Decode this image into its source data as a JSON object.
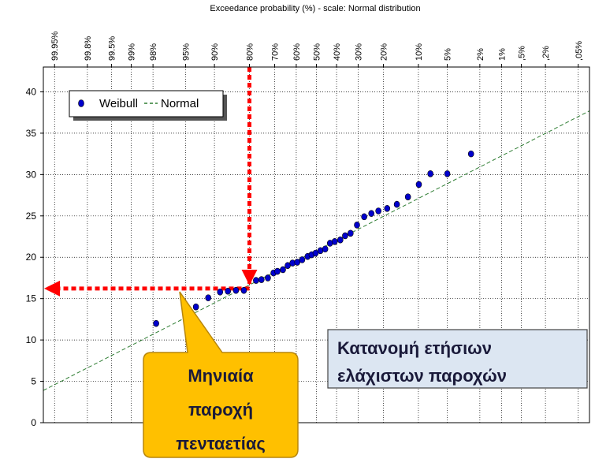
{
  "chart_data": {
    "type": "scatter",
    "title": "Exceedance probability  (%) - scale: Normal distribution",
    "xscale": "normal",
    "xlim": [
      99.97,
      0.03
    ],
    "xticks": [
      {
        "value": 99.95,
        "label": "99.95%"
      },
      {
        "value": 99.8,
        "label": "99.8%"
      },
      {
        "value": 99.5,
        "label": "99.5%"
      },
      {
        "value": 99,
        "label": "99%"
      },
      {
        "value": 98,
        "label": "98%"
      },
      {
        "value": 95,
        "label": "95%"
      },
      {
        "value": 90,
        "label": "90%"
      },
      {
        "value": 80,
        "label": "80%"
      },
      {
        "value": 70,
        "label": "70%"
      },
      {
        "value": 60,
        "label": "60%"
      },
      {
        "value": 50,
        "label": "50%"
      },
      {
        "value": 40,
        "label": "40%"
      },
      {
        "value": 30,
        "label": "30%"
      },
      {
        "value": 20,
        "label": "20%"
      },
      {
        "value": 10,
        "label": "10%"
      },
      {
        "value": 5,
        "label": "5%"
      },
      {
        "value": 2,
        "label": "2%"
      },
      {
        "value": 1,
        "label": "1%"
      },
      {
        "value": 0.5,
        "label": ",5%"
      },
      {
        "value": 0.2,
        "label": ",2%"
      },
      {
        "value": 0.05,
        "label": ",05%"
      }
    ],
    "ylim": [
      0,
      43
    ],
    "yticks": [
      0,
      5,
      10,
      15,
      20,
      25,
      30,
      35,
      40
    ],
    "grid": true,
    "legend": "upper left",
    "series": [
      {
        "name": "Weibull",
        "color": "#0000cc",
        "x": [
          97.8,
          93.5,
          91.3,
          88.7,
          86.7,
          84.4,
          81.9,
          77.6,
          75.5,
          72.9,
          70.5,
          68.8,
          66.3,
          64.1,
          61.8,
          59.5,
          57.1,
          54.4,
          52.4,
          50.4,
          48.0,
          45.6,
          43.2,
          40.9,
          38.2,
          35.9,
          33.4,
          30.5,
          27.4,
          24.5,
          21.8,
          18.7,
          15.6,
          12.5,
          9.9,
          7.6,
          5.0,
          2.6
        ],
        "values": [
          12,
          14,
          15.1,
          15.8,
          15.9,
          16.0,
          16.0,
          17.2,
          17.3,
          17.5,
          18.1,
          18.3,
          18.5,
          19.0,
          19.3,
          19.4,
          19.7,
          20.1,
          20.3,
          20.5,
          20.8,
          21.0,
          21.7,
          21.9,
          22.1,
          22.6,
          22.9,
          23.9,
          24.9,
          25.3,
          25.6,
          25.9,
          26.4,
          27.3,
          28.8,
          30.1,
          30.1,
          32.5
        ]
      },
      {
        "name": "Normal",
        "color": "#2e7d32",
        "x": [
          99.97,
          0.03
        ],
        "values": [
          3.9,
          37.7
        ]
      }
    ],
    "reference": {
      "x": 80,
      "y": 16.6,
      "color": "#ff0000"
    },
    "annotations": [
      {
        "lines": [
          "Μηνιαία",
          "παροχή",
          "πενταετίας"
        ]
      },
      {
        "lines": [
          "Κατανομή ετήσιων",
          "ελάχιστων παροχών"
        ]
      }
    ]
  }
}
